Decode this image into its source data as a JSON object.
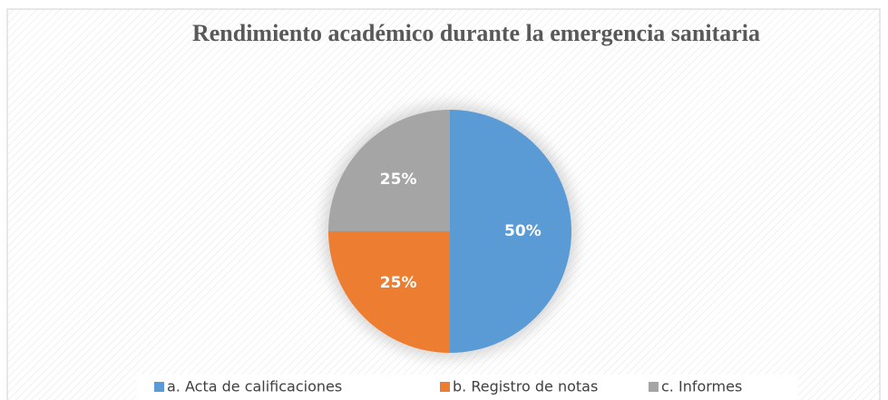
{
  "chart_data": {
    "type": "pie",
    "title": "Rendimiento académico durante la emergencia sanitaria",
    "categories": [
      "a. Acta de calificaciones",
      "b. Registro de notas",
      "c. Informes"
    ],
    "values": [
      50,
      25,
      25
    ],
    "value_labels": [
      "50%",
      "25%",
      "25%"
    ],
    "colors": [
      "#5b9bd5",
      "#ed7d31",
      "#a5a5a5"
    ],
    "legend": "bottom"
  }
}
